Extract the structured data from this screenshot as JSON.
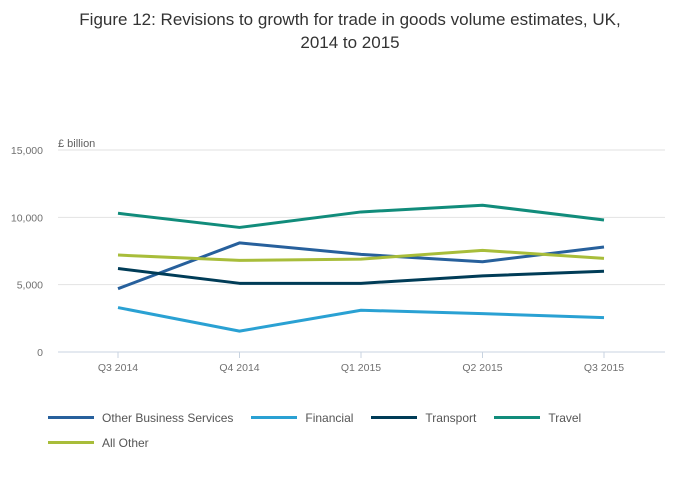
{
  "chart_data": {
    "type": "line",
    "title": "Figure 12: Revisions to growth for trade in goods volume estimates, UK, 2014 to 2015",
    "title_lines": [
      "Figure 12: Revisions to growth for trade in goods volume estimates, UK,",
      "2014 to 2015"
    ],
    "xlabel": "",
    "ylabel": "£ billion",
    "categories": [
      "Q3 2014",
      "Q4 2014",
      "Q1 2015",
      "Q2 2015",
      "Q3 2015"
    ],
    "ylim": [
      0,
      15000
    ],
    "yticks": [
      0,
      5000,
      10000,
      15000
    ],
    "ytick_labels": [
      "0",
      "5,000",
      "10,000",
      "15,000"
    ],
    "grid": true,
    "legend_position": "bottom",
    "series": [
      {
        "name": "Other Business Services",
        "color": "#27609c",
        "values": [
          4700,
          8100,
          7250,
          6700,
          7800
        ]
      },
      {
        "name": "Financial",
        "color": "#2aa1d3",
        "values": [
          3300,
          1550,
          3100,
          2850,
          2550
        ]
      },
      {
        "name": "Transport",
        "color": "#003c57",
        "values": [
          6200,
          5100,
          5100,
          5650,
          6000
        ]
      },
      {
        "name": "Travel",
        "color": "#118c7b",
        "values": [
          10300,
          9250,
          10400,
          10900,
          9800
        ]
      },
      {
        "name": "All Other",
        "color": "#a8bd3a",
        "values": [
          7200,
          6800,
          6900,
          7550,
          6950
        ]
      }
    ]
  }
}
